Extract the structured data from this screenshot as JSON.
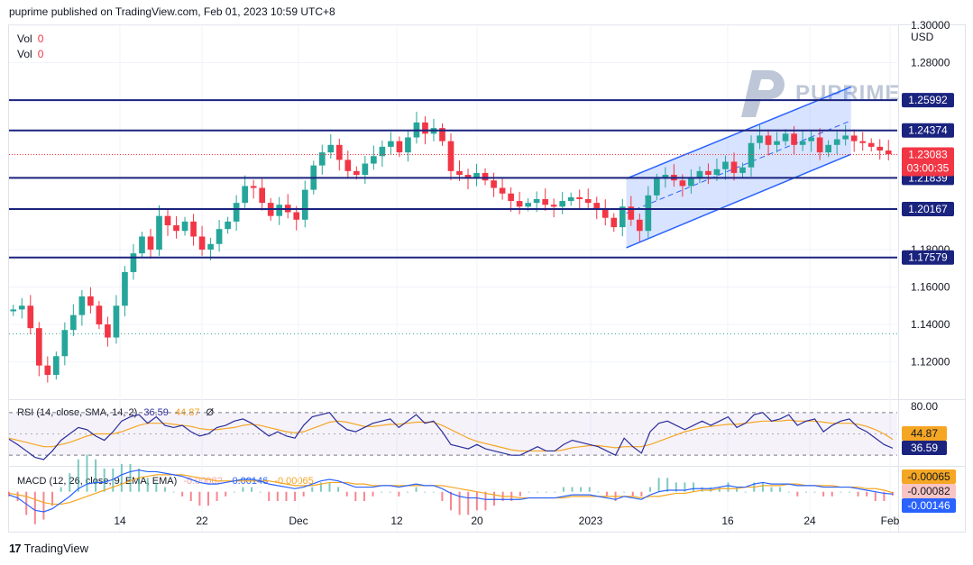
{
  "header": {
    "text": "puprime published on TradingView.com, Feb 01, 2023 10:59 UTC+8"
  },
  "volume_legend": [
    {
      "label": "Vol",
      "value": "0"
    },
    {
      "label": "Vol",
      "value": "0"
    }
  ],
  "watermark": {
    "text": "PUPRIME"
  },
  "footer": {
    "logo_mark": "17",
    "logo_text": "TradingView"
  },
  "colors": {
    "up": "#26a69a",
    "down": "#f23645",
    "level": "#1a237e",
    "channel": "#2962ff",
    "rsi": "#2a2e9a",
    "rsi_ma": "#f5a623",
    "macd": "#2962ff",
    "signal": "#f5a623"
  },
  "chart_data": [
    {
      "type": "candlestick",
      "currency": "USD",
      "y_ticks": [
        "1.30000",
        "1.28000",
        "1.18000",
        "1.16000",
        "1.14000",
        "1.12000"
      ],
      "x_ticks": [
        "14",
        "22",
        "Dec",
        "12",
        "20",
        "2023",
        "16",
        "24",
        "Feb"
      ],
      "ylim": [
        1.1,
        1.3
      ],
      "grid": true,
      "price_series": [
        1.148,
        1.15,
        1.138,
        1.118,
        1.113,
        1.123,
        1.137,
        1.145,
        1.155,
        1.15,
        1.14,
        1.133,
        1.15,
        1.168,
        1.178,
        1.187,
        1.18,
        1.198,
        1.193,
        1.19,
        1.195,
        1.187,
        1.18,
        1.183,
        1.191,
        1.195,
        1.205,
        1.214,
        1.213,
        1.205,
        1.198,
        1.204,
        1.2,
        1.196,
        1.212,
        1.225,
        1.232,
        1.236,
        1.228,
        1.222,
        1.22,
        1.226,
        1.23,
        1.235,
        1.238,
        1.232,
        1.24,
        1.248,
        1.242,
        1.245,
        1.238,
        1.222,
        1.22,
        1.218,
        1.221,
        1.217,
        1.213,
        1.21,
        1.206,
        1.203,
        1.205,
        1.207,
        1.204,
        1.203,
        1.206,
        1.208,
        1.207,
        1.205,
        1.202,
        1.197,
        1.192,
        1.203,
        1.196,
        1.19,
        1.209,
        1.218,
        1.22,
        1.217,
        1.214,
        1.218,
        1.222,
        1.22,
        1.223,
        1.227,
        1.221,
        1.224,
        1.237,
        1.241,
        1.236,
        1.238,
        1.242,
        1.236,
        1.238,
        1.24,
        1.232,
        1.236,
        1.239,
        1.241,
        1.238,
        1.237,
        1.235,
        1.233,
        1.231
      ],
      "horizontal_levels": [
        {
          "value": 1.25992,
          "label": "1.25992"
        },
        {
          "value": 1.24374,
          "label": "1.24374"
        },
        {
          "value": 1.21839,
          "label": "1.21839"
        },
        {
          "value": 1.20167,
          "label": "1.20167"
        },
        {
          "value": 1.17579,
          "label": "1.17579"
        }
      ],
      "last_price": {
        "value": 1.23083,
        "label": "1.23083",
        "countdown": "03:00:35"
      },
      "prior_close": 1.135,
      "channel": {
        "lower_start": [
          0.695,
          1.181
        ],
        "lower_end": [
          0.948,
          1.231
        ],
        "upper_start": [
          0.695,
          1.218
        ],
        "upper_end": [
          0.948,
          1.267
        ]
      }
    },
    {
      "type": "line",
      "title": "RSI (14, close, SMA, 14, 2)",
      "values_text": [
        "36.59",
        "44.87"
      ],
      "extra_text": "Ø",
      "y_ticks": [
        "80.00"
      ],
      "labels": [
        {
          "text": "44.87",
          "series": "ma"
        },
        {
          "text": "36.59",
          "series": "rsi"
        }
      ],
      "ylim": [
        20,
        80
      ],
      "band": [
        30,
        70
      ],
      "rsi": [
        45,
        40,
        34,
        28,
        26,
        34,
        44,
        50,
        56,
        54,
        48,
        44,
        52,
        62,
        66,
        68,
        60,
        66,
        58,
        56,
        58,
        52,
        48,
        50,
        56,
        58,
        62,
        64,
        60,
        54,
        48,
        52,
        48,
        46,
        58,
        66,
        68,
        70,
        60,
        54,
        52,
        56,
        60,
        62,
        64,
        56,
        62,
        68,
        60,
        62,
        52,
        40,
        38,
        36,
        40,
        36,
        34,
        32,
        30,
        30,
        34,
        38,
        34,
        34,
        40,
        44,
        42,
        40,
        38,
        34,
        30,
        46,
        38,
        32,
        52,
        60,
        62,
        58,
        54,
        58,
        62,
        58,
        62,
        66,
        56,
        60,
        68,
        70,
        62,
        64,
        68,
        58,
        62,
        64,
        52,
        58,
        62,
        64,
        56,
        52,
        46,
        40,
        36.59
      ],
      "ma": [
        46,
        44,
        42,
        40,
        38,
        38,
        40,
        42,
        45,
        48,
        50,
        50,
        50,
        52,
        55,
        58,
        60,
        60,
        60,
        59,
        58,
        57,
        55,
        54,
        54,
        55,
        56,
        58,
        59,
        58,
        56,
        54,
        52,
        51,
        52,
        55,
        58,
        61,
        62,
        61,
        59,
        57,
        57,
        58,
        59,
        59,
        60,
        61,
        61,
        61,
        58,
        54,
        50,
        46,
        43,
        41,
        39,
        37,
        35,
        34,
        34,
        34,
        34,
        34,
        35,
        37,
        38,
        39,
        39,
        38,
        37,
        38,
        38,
        38,
        40,
        43,
        46,
        49,
        52,
        54,
        56,
        57,
        58,
        59,
        59,
        60,
        61,
        62,
        62,
        62,
        63,
        62,
        62,
        62,
        61,
        60,
        60,
        60,
        59,
        57,
        54,
        50,
        44.87
      ]
    },
    {
      "type": "line",
      "title": "MACD (12, 26, close, 9, EMA, EMA)",
      "values_text": [
        "-0.00082",
        "-0.00146",
        "-0.00065"
      ],
      "labels": [
        {
          "text": "-0.00065",
          "series": "signal"
        },
        {
          "text": "-0.00082",
          "series": "histogram"
        },
        {
          "text": "-0.00146",
          "series": "macd"
        }
      ],
      "ylim": [
        -0.02,
        0.015
      ],
      "macd": [
        -0.002,
        -0.004,
        -0.008,
        -0.012,
        -0.013,
        -0.011,
        -0.007,
        -0.003,
        0.002,
        0.005,
        0.006,
        0.006,
        0.008,
        0.011,
        0.013,
        0.014,
        0.013,
        0.013,
        0.012,
        0.011,
        0.01,
        0.008,
        0.006,
        0.005,
        0.005,
        0.006,
        0.007,
        0.008,
        0.008,
        0.007,
        0.005,
        0.004,
        0.003,
        0.002,
        0.003,
        0.005,
        0.007,
        0.008,
        0.007,
        0.005,
        0.003,
        0.003,
        0.003,
        0.004,
        0.004,
        0.003,
        0.004,
        0.005,
        0.004,
        0.004,
        0.002,
        -0.001,
        -0.003,
        -0.004,
        -0.004,
        -0.005,
        -0.005,
        -0.005,
        -0.005,
        -0.005,
        -0.004,
        -0.004,
        -0.004,
        -0.004,
        -0.003,
        -0.002,
        -0.002,
        -0.002,
        -0.003,
        -0.004,
        -0.005,
        -0.003,
        -0.004,
        -0.005,
        -0.002,
        0.0,
        0.001,
        0.001,
        0.001,
        0.002,
        0.002,
        0.002,
        0.003,
        0.004,
        0.003,
        0.003,
        0.005,
        0.006,
        0.005,
        0.005,
        0.005,
        0.004,
        0.004,
        0.004,
        0.003,
        0.003,
        0.003,
        0.003,
        0.002,
        0.001,
        0.0,
        -0.001,
        -0.00146
      ],
      "signal": [
        -0.001,
        -0.002,
        -0.003,
        -0.005,
        -0.007,
        -0.008,
        -0.008,
        -0.007,
        -0.005,
        -0.003,
        -0.001,
        0.001,
        0.003,
        0.005,
        0.007,
        0.009,
        0.01,
        0.011,
        0.011,
        0.011,
        0.011,
        0.01,
        0.009,
        0.008,
        0.007,
        0.007,
        0.007,
        0.007,
        0.007,
        0.007,
        0.007,
        0.006,
        0.005,
        0.004,
        0.004,
        0.004,
        0.005,
        0.006,
        0.006,
        0.006,
        0.005,
        0.005,
        0.004,
        0.004,
        0.004,
        0.004,
        0.004,
        0.004,
        0.004,
        0.004,
        0.004,
        0.003,
        0.002,
        0.001,
        0.0,
        -0.001,
        -0.002,
        -0.003,
        -0.003,
        -0.004,
        -0.004,
        -0.004,
        -0.004,
        -0.004,
        -0.004,
        -0.003,
        -0.003,
        -0.003,
        -0.003,
        -0.003,
        -0.003,
        -0.003,
        -0.003,
        -0.004,
        -0.003,
        -0.003,
        -0.002,
        -0.001,
        -0.001,
        0.0,
        0.001,
        0.001,
        0.002,
        0.002,
        0.002,
        0.003,
        0.003,
        0.004,
        0.004,
        0.004,
        0.005,
        0.005,
        0.004,
        0.004,
        0.004,
        0.004,
        0.003,
        0.003,
        0.003,
        0.002,
        0.002,
        0.001,
        -0.00065
      ]
    }
  ]
}
